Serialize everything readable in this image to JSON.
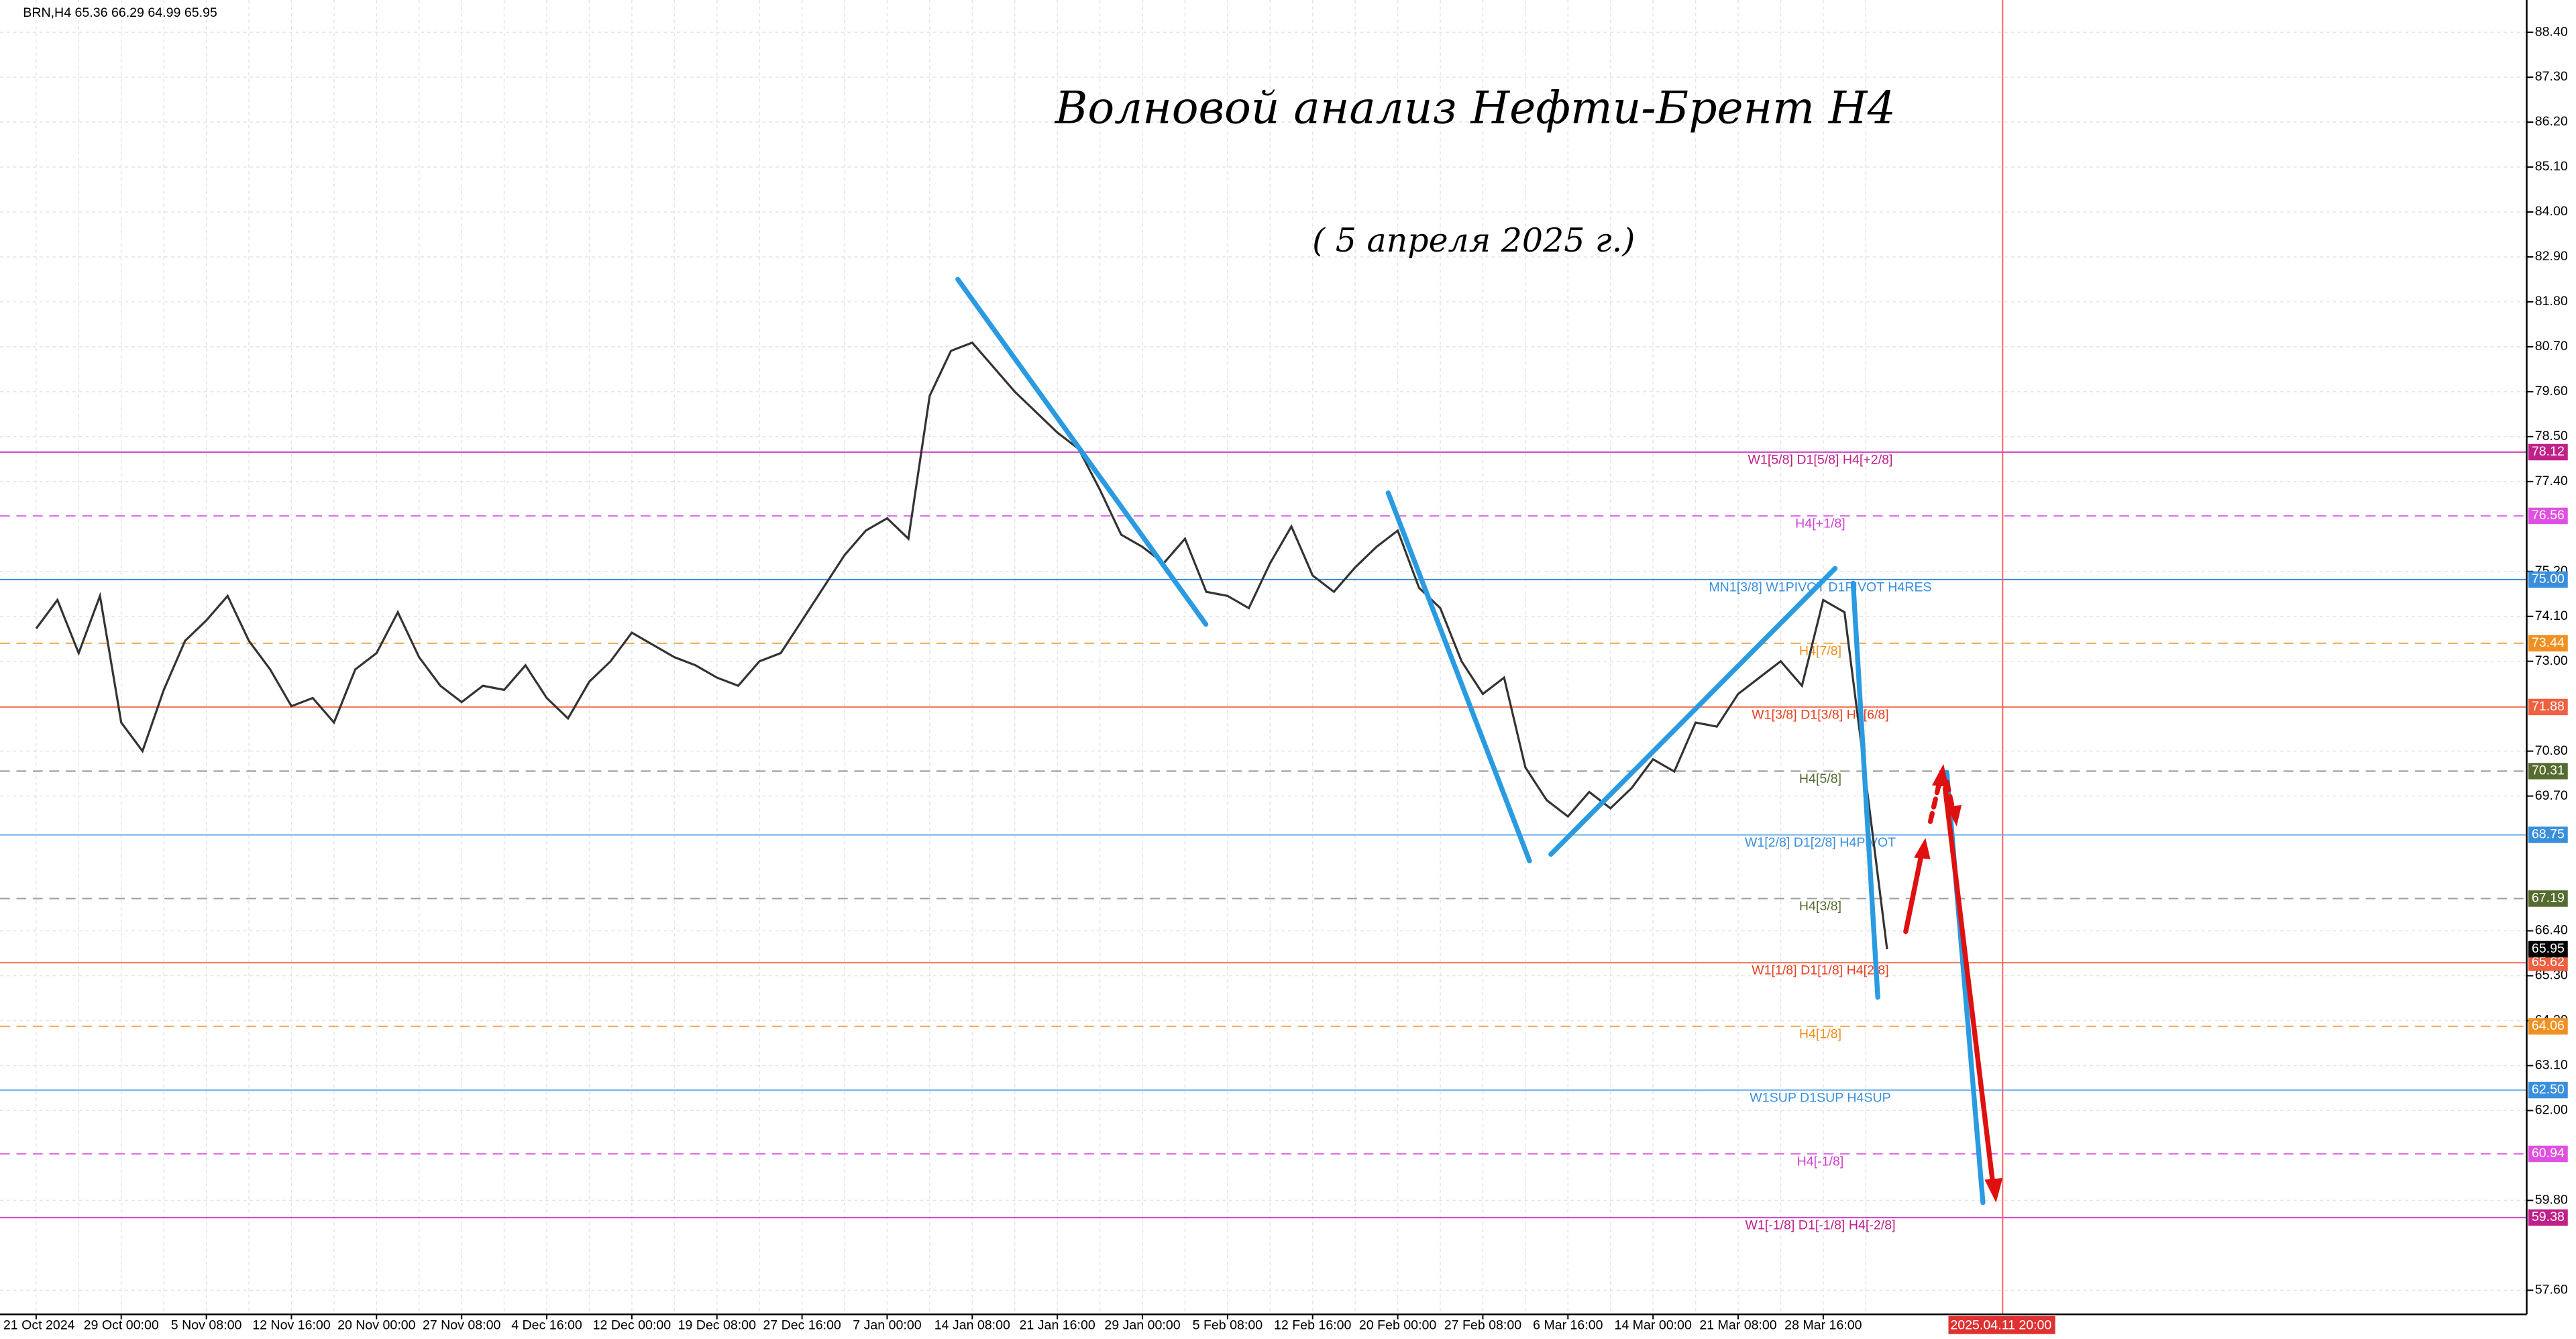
{
  "chart_data": {
    "type": "line",
    "header": "BRN,H4  65.36 66.29 64.99 65.95",
    "title": "Волновой анализ Нефти-Брент H4",
    "subtitle": "( 5 апреля 2025 г.)",
    "categories": [
      "21 Oct 2024",
      null,
      null,
      null,
      "29 Oct 00:00",
      null,
      null,
      null,
      "5 Nov 08:00",
      null,
      null,
      null,
      "12 Nov 16:00",
      null,
      null,
      null,
      "20 Nov 00:00",
      null,
      null,
      null,
      "27 Nov 08:00",
      null,
      null,
      null,
      "4 Dec 16:00",
      null,
      null,
      null,
      "12 Dec 00:00",
      null,
      null,
      null,
      "19 Dec 08:00",
      null,
      null,
      null,
      "27 Dec 16:00",
      null,
      null,
      null,
      "7 Jan 00:00",
      null,
      null,
      null,
      "14 Jan 08:00",
      null,
      null,
      null,
      "21 Jan 16:00",
      null,
      null,
      null,
      "29 Jan 00:00",
      null,
      null,
      null,
      "5 Feb 08:00",
      null,
      null,
      null,
      "12 Feb 16:00",
      null,
      null,
      null,
      "20 Feb 00:00",
      null,
      null,
      null,
      "27 Feb 08:00",
      null,
      null,
      null,
      "6 Mar 16:00",
      null,
      null,
      null,
      "14 Mar 00:00",
      null,
      null,
      null,
      "21 Mar 08:00",
      null,
      null,
      null,
      "28 Mar 16:00",
      null,
      null,
      null
    ],
    "series": [
      {
        "name": "BRN,H4",
        "color": "#333333",
        "values": [
          73.8,
          74.5,
          73.2,
          74.6,
          71.5,
          70.8,
          72.3,
          73.5,
          74.0,
          74.6,
          73.5,
          72.8,
          71.9,
          72.1,
          71.5,
          72.8,
          73.2,
          74.2,
          73.1,
          72.4,
          72.0,
          72.4,
          72.3,
          72.9,
          72.1,
          71.6,
          72.5,
          73.0,
          73.7,
          73.4,
          73.1,
          72.9,
          72.6,
          72.4,
          73.0,
          73.2,
          74.0,
          74.8,
          75.6,
          76.2,
          76.5,
          76.0,
          79.5,
          80.6,
          80.8,
          80.2,
          79.6,
          79.1,
          78.6,
          78.2,
          77.2,
          76.1,
          75.8,
          75.4,
          76.0,
          74.7,
          74.6,
          74.3,
          75.4,
          76.3,
          75.1,
          74.7,
          75.3,
          75.8,
          76.2,
          74.8,
          74.3,
          73.0,
          72.2,
          72.6,
          70.4,
          69.6,
          69.2,
          69.8,
          69.4,
          69.9,
          70.6,
          70.3,
          71.5,
          71.4,
          72.2,
          72.6,
          73.0,
          72.4,
          74.5,
          74.2,
          70.1,
          65.95
        ]
      }
    ],
    "ylim": [
      57.01,
      89.19
    ],
    "yticks": [
      {
        "value": 88.4,
        "label": "88.40"
      },
      {
        "value": 87.3,
        "label": "87.30"
      },
      {
        "value": 86.2,
        "label": "86.20"
      },
      {
        "value": 85.1,
        "label": "85.10"
      },
      {
        "value": 84,
        "label": "84.00"
      },
      {
        "value": 82.9,
        "label": "82.90"
      },
      {
        "value": 81.8,
        "label": "81.80"
      },
      {
        "value": 80.7,
        "label": "80.70"
      },
      {
        "value": 79.6,
        "label": "79.60"
      },
      {
        "value": 78.5,
        "label": "78.50"
      },
      {
        "value": 77.4,
        "label": "77.40"
      },
      {
        "value": 75.2,
        "label": "75.20"
      },
      {
        "value": 74.1,
        "label": "74.10"
      },
      {
        "value": 73,
        "label": "73.00"
      },
      {
        "value": 70.8,
        "label": "70.80"
      },
      {
        "value": 69.7,
        "label": "69.70"
      },
      {
        "value": 66.4,
        "label": "66.40"
      },
      {
        "value": 65.3,
        "label": "65.30"
      },
      {
        "value": 64.2,
        "label": "64.20"
      },
      {
        "value": 63.1,
        "label": "63.10"
      },
      {
        "value": 62,
        "label": "62.00"
      },
      {
        "value": 59.8,
        "label": "59.80"
      },
      {
        "value": 57.6,
        "label": "57.60"
      }
    ],
    "grid": true,
    "levels": [
      {
        "name": "W1[5/8] D1[5/8] H4[+2/8]",
        "value": 78.12,
        "value_label": "78.12",
        "color": "#d050c8",
        "box": "#c0208a",
        "text_color": "#c0208a",
        "dash": false
      },
      {
        "name": "H4[+1/8]",
        "value": 76.56,
        "value_label": "76.56",
        "color": "#e070e8",
        "box": "#e050e0",
        "text_color": "#d040d0",
        "dash": true
      },
      {
        "name": "MN1[3/8] W1PIVOT D1PIVOT H4RES",
        "value": 75,
        "value_label": "75.00",
        "color": "#3a8fdc",
        "box": "#3a8fdc",
        "text_color": "#3a8fdc",
        "dash": false
      },
      {
        "name": "H4[7/8]",
        "value": 73.44,
        "value_label": "73.44",
        "color": "#f0b060",
        "box": "#f09020",
        "text_color": "#f09020",
        "dash": true
      },
      {
        "name": "W1[3/8] D1[3/8] H4[6/8]",
        "value": 71.88,
        "value_label": "71.88",
        "color": "#f08060",
        "box": "#f06040",
        "text_color": "#e84020",
        "dash": false
      },
      {
        "name": "H4[5/8]",
        "value": 70.31,
        "value_label": "70.31",
        "color": "#a0a0a0",
        "box": "#556b2f",
        "text_color": "#556b2f",
        "dash": true
      },
      {
        "name": "W1[2/8] D1[2/8] H4PIVOT",
        "value": 68.75,
        "value_label": "68.75",
        "color": "#7ab8ee",
        "box": "#3a8fdc",
        "text_color": "#3a8fdc",
        "dash": false
      },
      {
        "name": "H4[3/8]",
        "value": 67.19,
        "value_label": "67.19",
        "color": "#a0a0a0",
        "box": "#556b2f",
        "text_color": "#556b2f",
        "dash": true
      },
      {
        "name": "W1[1/8] D1[1/8] H4[2/8]",
        "value": 65.62,
        "value_label": "65.62",
        "color": "#f08060",
        "box": "#f06040",
        "text_color": "#e84020",
        "dash": false
      },
      {
        "name": "H4[1/8]",
        "value": 64.06,
        "value_label": "64.06",
        "color": "#f0b060",
        "box": "#f09020",
        "text_color": "#f09020",
        "dash": true
      },
      {
        "name": "W1SUP D1SUP H4SUP",
        "value": 62.5,
        "value_label": "62.50",
        "color": "#7ab8ee",
        "box": "#3a8fdc",
        "text_color": "#3a8fdc",
        "dash": false
      },
      {
        "name": "H4[-1/8]",
        "value": 60.94,
        "value_label": "60.94",
        "color": "#e070e8",
        "box": "#e050e0",
        "text_color": "#d040d0",
        "dash": true
      },
      {
        "name": "W1[-1/8] D1[-1/8] H4[-2/8]",
        "value": 59.38,
        "value_label": "59.38",
        "color": "#d050c8",
        "box": "#c0208a",
        "text_color": "#c0208a",
        "dash": false
      }
    ],
    "cursor_label": "2025.04.11 20:00"
  }
}
